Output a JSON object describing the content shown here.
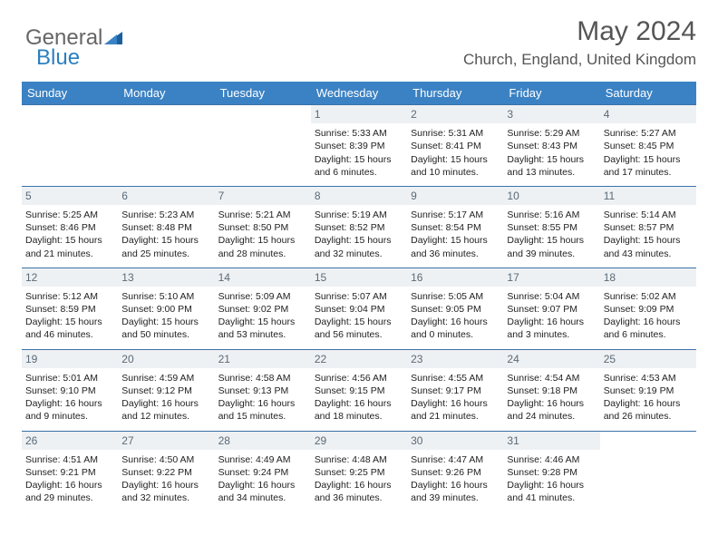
{
  "brand": {
    "part1": "General",
    "part2": "Blue"
  },
  "title": "May 2024",
  "location": "Church, England, United Kingdom",
  "style": {
    "header_bg": "#3b82c4",
    "header_fg": "#ffffff",
    "border_color": "#3b72a8",
    "daynum_bg": "#eef1f3",
    "daynum_fg": "#5a6a78",
    "page_bg": "#ffffff",
    "text_color": "#222222",
    "title_color": "#555555",
    "font_family": "Arial",
    "title_fontsize": 30,
    "location_fontsize": 17,
    "header_fontsize": 13,
    "cell_fontsize": 10.5
  },
  "weekdays": [
    "Sunday",
    "Monday",
    "Tuesday",
    "Wednesday",
    "Thursday",
    "Friday",
    "Saturday"
  ],
  "weeks": [
    [
      {
        "day": "",
        "sunrise": "",
        "sunset": "",
        "daylight": ""
      },
      {
        "day": "",
        "sunrise": "",
        "sunset": "",
        "daylight": ""
      },
      {
        "day": "",
        "sunrise": "",
        "sunset": "",
        "daylight": ""
      },
      {
        "day": "1",
        "sunrise": "Sunrise: 5:33 AM",
        "sunset": "Sunset: 8:39 PM",
        "daylight": "Daylight: 15 hours and 6 minutes."
      },
      {
        "day": "2",
        "sunrise": "Sunrise: 5:31 AM",
        "sunset": "Sunset: 8:41 PM",
        "daylight": "Daylight: 15 hours and 10 minutes."
      },
      {
        "day": "3",
        "sunrise": "Sunrise: 5:29 AM",
        "sunset": "Sunset: 8:43 PM",
        "daylight": "Daylight: 15 hours and 13 minutes."
      },
      {
        "day": "4",
        "sunrise": "Sunrise: 5:27 AM",
        "sunset": "Sunset: 8:45 PM",
        "daylight": "Daylight: 15 hours and 17 minutes."
      }
    ],
    [
      {
        "day": "5",
        "sunrise": "Sunrise: 5:25 AM",
        "sunset": "Sunset: 8:46 PM",
        "daylight": "Daylight: 15 hours and 21 minutes."
      },
      {
        "day": "6",
        "sunrise": "Sunrise: 5:23 AM",
        "sunset": "Sunset: 8:48 PM",
        "daylight": "Daylight: 15 hours and 25 minutes."
      },
      {
        "day": "7",
        "sunrise": "Sunrise: 5:21 AM",
        "sunset": "Sunset: 8:50 PM",
        "daylight": "Daylight: 15 hours and 28 minutes."
      },
      {
        "day": "8",
        "sunrise": "Sunrise: 5:19 AM",
        "sunset": "Sunset: 8:52 PM",
        "daylight": "Daylight: 15 hours and 32 minutes."
      },
      {
        "day": "9",
        "sunrise": "Sunrise: 5:17 AM",
        "sunset": "Sunset: 8:54 PM",
        "daylight": "Daylight: 15 hours and 36 minutes."
      },
      {
        "day": "10",
        "sunrise": "Sunrise: 5:16 AM",
        "sunset": "Sunset: 8:55 PM",
        "daylight": "Daylight: 15 hours and 39 minutes."
      },
      {
        "day": "11",
        "sunrise": "Sunrise: 5:14 AM",
        "sunset": "Sunset: 8:57 PM",
        "daylight": "Daylight: 15 hours and 43 minutes."
      }
    ],
    [
      {
        "day": "12",
        "sunrise": "Sunrise: 5:12 AM",
        "sunset": "Sunset: 8:59 PM",
        "daylight": "Daylight: 15 hours and 46 minutes."
      },
      {
        "day": "13",
        "sunrise": "Sunrise: 5:10 AM",
        "sunset": "Sunset: 9:00 PM",
        "daylight": "Daylight: 15 hours and 50 minutes."
      },
      {
        "day": "14",
        "sunrise": "Sunrise: 5:09 AM",
        "sunset": "Sunset: 9:02 PM",
        "daylight": "Daylight: 15 hours and 53 minutes."
      },
      {
        "day": "15",
        "sunrise": "Sunrise: 5:07 AM",
        "sunset": "Sunset: 9:04 PM",
        "daylight": "Daylight: 15 hours and 56 minutes."
      },
      {
        "day": "16",
        "sunrise": "Sunrise: 5:05 AM",
        "sunset": "Sunset: 9:05 PM",
        "daylight": "Daylight: 16 hours and 0 minutes."
      },
      {
        "day": "17",
        "sunrise": "Sunrise: 5:04 AM",
        "sunset": "Sunset: 9:07 PM",
        "daylight": "Daylight: 16 hours and 3 minutes."
      },
      {
        "day": "18",
        "sunrise": "Sunrise: 5:02 AM",
        "sunset": "Sunset: 9:09 PM",
        "daylight": "Daylight: 16 hours and 6 minutes."
      }
    ],
    [
      {
        "day": "19",
        "sunrise": "Sunrise: 5:01 AM",
        "sunset": "Sunset: 9:10 PM",
        "daylight": "Daylight: 16 hours and 9 minutes."
      },
      {
        "day": "20",
        "sunrise": "Sunrise: 4:59 AM",
        "sunset": "Sunset: 9:12 PM",
        "daylight": "Daylight: 16 hours and 12 minutes."
      },
      {
        "day": "21",
        "sunrise": "Sunrise: 4:58 AM",
        "sunset": "Sunset: 9:13 PM",
        "daylight": "Daylight: 16 hours and 15 minutes."
      },
      {
        "day": "22",
        "sunrise": "Sunrise: 4:56 AM",
        "sunset": "Sunset: 9:15 PM",
        "daylight": "Daylight: 16 hours and 18 minutes."
      },
      {
        "day": "23",
        "sunrise": "Sunrise: 4:55 AM",
        "sunset": "Sunset: 9:17 PM",
        "daylight": "Daylight: 16 hours and 21 minutes."
      },
      {
        "day": "24",
        "sunrise": "Sunrise: 4:54 AM",
        "sunset": "Sunset: 9:18 PM",
        "daylight": "Daylight: 16 hours and 24 minutes."
      },
      {
        "day": "25",
        "sunrise": "Sunrise: 4:53 AM",
        "sunset": "Sunset: 9:19 PM",
        "daylight": "Daylight: 16 hours and 26 minutes."
      }
    ],
    [
      {
        "day": "26",
        "sunrise": "Sunrise: 4:51 AM",
        "sunset": "Sunset: 9:21 PM",
        "daylight": "Daylight: 16 hours and 29 minutes."
      },
      {
        "day": "27",
        "sunrise": "Sunrise: 4:50 AM",
        "sunset": "Sunset: 9:22 PM",
        "daylight": "Daylight: 16 hours and 32 minutes."
      },
      {
        "day": "28",
        "sunrise": "Sunrise: 4:49 AM",
        "sunset": "Sunset: 9:24 PM",
        "daylight": "Daylight: 16 hours and 34 minutes."
      },
      {
        "day": "29",
        "sunrise": "Sunrise: 4:48 AM",
        "sunset": "Sunset: 9:25 PM",
        "daylight": "Daylight: 16 hours and 36 minutes."
      },
      {
        "day": "30",
        "sunrise": "Sunrise: 4:47 AM",
        "sunset": "Sunset: 9:26 PM",
        "daylight": "Daylight: 16 hours and 39 minutes."
      },
      {
        "day": "31",
        "sunrise": "Sunrise: 4:46 AM",
        "sunset": "Sunset: 9:28 PM",
        "daylight": "Daylight: 16 hours and 41 minutes."
      },
      {
        "day": "",
        "sunrise": "",
        "sunset": "",
        "daylight": ""
      }
    ]
  ]
}
